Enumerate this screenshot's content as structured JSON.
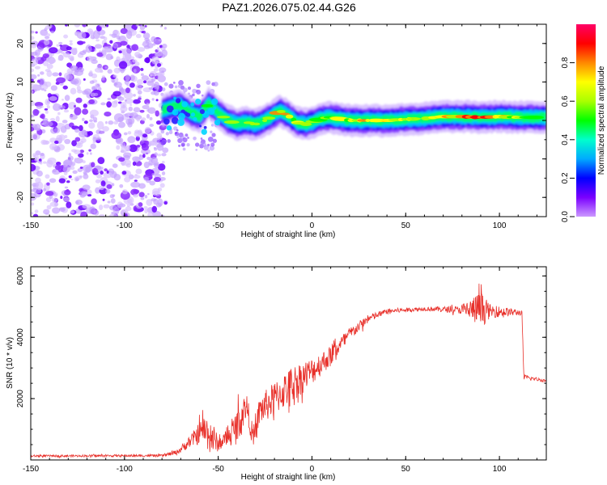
{
  "title": "PAZ1.2026.075.02.44.G26",
  "chart_data": [
    {
      "type": "heatmap",
      "name": "spectrogram",
      "xlabel": "Height of straight line (km)",
      "ylabel": "Frequency (Hz)",
      "xlim": [
        -150,
        125
      ],
      "ylim": [
        -25,
        25
      ],
      "xticks": [
        -150,
        -100,
        -50,
        0,
        50,
        100
      ],
      "yticks": [
        -20,
        -10,
        0,
        10,
        20
      ],
      "colorbar": {
        "label": "Normalized spectral amplitude",
        "range": [
          0.0,
          1.0
        ],
        "ticks": [
          0.0,
          0.2,
          0.4,
          0.6,
          0.8
        ],
        "colors": [
          "#cc99ff",
          "#7a00ff",
          "#0000ff",
          "#00aaff",
          "#00ffcc",
          "#00ff00",
          "#aaff00",
          "#ffff00",
          "#ff8800",
          "#ff0000",
          "#ff0066"
        ]
      },
      "noise_region_x": [
        -150,
        -78
      ],
      "ridge": [
        {
          "x": -80,
          "y": 2.5,
          "a": 0.3
        },
        {
          "x": -75,
          "y": 3.5,
          "a": 0.45
        },
        {
          "x": -70,
          "y": 4.0,
          "a": 0.5
        },
        {
          "x": -65,
          "y": 2.0,
          "a": 0.45
        },
        {
          "x": -60,
          "y": 1.0,
          "a": 0.35
        },
        {
          "x": -55,
          "y": 4.5,
          "a": 0.5
        },
        {
          "x": -50,
          "y": 2.0,
          "a": 0.5
        },
        {
          "x": -45,
          "y": 0.0,
          "a": 0.5
        },
        {
          "x": -40,
          "y": -1.0,
          "a": 0.55
        },
        {
          "x": -35,
          "y": -0.5,
          "a": 0.6
        },
        {
          "x": -30,
          "y": -1.0,
          "a": 0.65
        },
        {
          "x": -25,
          "y": 0.0,
          "a": 0.6
        },
        {
          "x": -20,
          "y": 1.5,
          "a": 0.65
        },
        {
          "x": -17,
          "y": 2.5,
          "a": 0.75
        },
        {
          "x": -12,
          "y": 1.0,
          "a": 0.7
        },
        {
          "x": -8,
          "y": -0.5,
          "a": 0.65
        },
        {
          "x": -3,
          "y": -1.0,
          "a": 0.7
        },
        {
          "x": 0,
          "y": -0.5,
          "a": 0.65
        },
        {
          "x": 5,
          "y": 0.5,
          "a": 0.7
        },
        {
          "x": 10,
          "y": 0.8,
          "a": 0.6
        },
        {
          "x": 20,
          "y": 0.0,
          "a": 0.7
        },
        {
          "x": 30,
          "y": 0.0,
          "a": 0.75
        },
        {
          "x": 40,
          "y": 0.0,
          "a": 0.72
        },
        {
          "x": 50,
          "y": 0.3,
          "a": 0.65
        },
        {
          "x": 60,
          "y": 0.5,
          "a": 0.65
        },
        {
          "x": 70,
          "y": 1.0,
          "a": 0.75
        },
        {
          "x": 80,
          "y": 1.0,
          "a": 0.85
        },
        {
          "x": 90,
          "y": 0.8,
          "a": 0.85
        },
        {
          "x": 100,
          "y": 1.0,
          "a": 0.75
        },
        {
          "x": 110,
          "y": 0.8,
          "a": 0.6
        },
        {
          "x": 125,
          "y": 0.8,
          "a": 0.5
        }
      ]
    },
    {
      "type": "line",
      "name": "snr",
      "xlabel": "Height of straight line (km)",
      "ylabel": "SNR (10 * v/v)",
      "xlim": [
        -150,
        125
      ],
      "ylim": [
        0,
        6300
      ],
      "xticks": [
        -150,
        -100,
        -50,
        0,
        50,
        100
      ],
      "yticks": [
        2000,
        4000,
        6000
      ],
      "color": "#e8302a",
      "series": [
        {
          "name": "SNR",
          "envelope": [
            {
              "x": -150,
              "y": 130,
              "amp": 60
            },
            {
              "x": -80,
              "y": 140,
              "amp": 70
            },
            {
              "x": -72,
              "y": 250,
              "amp": 150
            },
            {
              "x": -65,
              "y": 600,
              "amp": 350
            },
            {
              "x": -58,
              "y": 1000,
              "amp": 800
            },
            {
              "x": -54,
              "y": 800,
              "amp": 1200
            },
            {
              "x": -50,
              "y": 500,
              "amp": 400
            },
            {
              "x": -44,
              "y": 800,
              "amp": 500
            },
            {
              "x": -40,
              "y": 1100,
              "amp": 1100
            },
            {
              "x": -35,
              "y": 1800,
              "amp": 800
            },
            {
              "x": -31,
              "y": 600,
              "amp": 600
            },
            {
              "x": -28,
              "y": 1600,
              "amp": 900
            },
            {
              "x": -20,
              "y": 2000,
              "amp": 1000
            },
            {
              "x": -10,
              "y": 2500,
              "amp": 1100
            },
            {
              "x": 0,
              "y": 2900,
              "amp": 800
            },
            {
              "x": 10,
              "y": 3400,
              "amp": 600
            },
            {
              "x": 20,
              "y": 4100,
              "amp": 400
            },
            {
              "x": 30,
              "y": 4600,
              "amp": 250
            },
            {
              "x": 40,
              "y": 4850,
              "amp": 150
            },
            {
              "x": 60,
              "y": 4930,
              "amp": 120
            },
            {
              "x": 78,
              "y": 4900,
              "amp": 200
            },
            {
              "x": 85,
              "y": 4900,
              "amp": 700
            },
            {
              "x": 90,
              "y": 4900,
              "amp": 1100
            },
            {
              "x": 95,
              "y": 4850,
              "amp": 400
            },
            {
              "x": 112,
              "y": 4800,
              "amp": 150
            },
            {
              "x": 113,
              "y": 2700,
              "amp": 150
            },
            {
              "x": 125,
              "y": 2580,
              "amp": 80
            }
          ]
        }
      ]
    }
  ]
}
